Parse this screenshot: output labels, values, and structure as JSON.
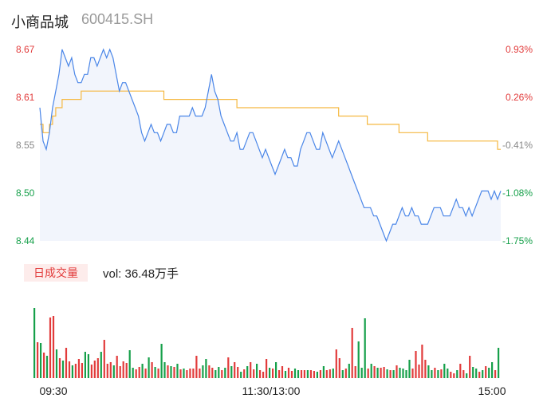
{
  "header": {
    "name": "小商品城",
    "code": "600415.SH"
  },
  "volume_panel": {
    "tab_label": "日成交量",
    "vol_text": "vol: 36.48万手"
  },
  "colors": {
    "price_line": "#4a86e8",
    "avg_line": "#f5b840",
    "up": "#e23b3b",
    "down": "#16a04a",
    "area_fill": "#f2f5fc"
  },
  "chart_data": [
    {
      "type": "line",
      "y_left_ticks": [
        "8.67",
        "8.61",
        "8.55",
        "8.50",
        "8.44"
      ],
      "y_right_ticks": [
        "0.93%",
        "0.26%",
        "-0.41%",
        "-1.08%",
        "-1.75%"
      ],
      "x_ticks": [
        "09:30",
        "11:30/13:00",
        "15:00"
      ],
      "ylim": [
        8.44,
        8.67
      ],
      "series": [
        {
          "values": [
            8.6,
            8.56,
            8.55,
            8.57,
            8.6,
            8.62,
            8.64,
            8.67,
            8.66,
            8.65,
            8.66,
            8.64,
            8.63,
            8.63,
            8.64,
            8.64,
            8.66,
            8.66,
            8.65,
            8.66,
            8.67,
            8.66,
            8.67,
            8.66,
            8.64,
            8.62,
            8.63,
            8.63,
            8.62,
            8.61,
            8.6,
            8.59,
            8.57,
            8.56,
            8.57,
            8.58,
            8.57,
            8.57,
            8.56,
            8.57,
            8.58,
            8.58,
            8.57,
            8.57,
            8.59,
            8.59,
            8.59,
            8.59,
            8.6,
            8.59,
            8.59,
            8.59,
            8.6,
            8.62,
            8.64,
            8.62,
            8.61,
            8.59,
            8.58,
            8.57,
            8.56,
            8.56,
            8.57,
            8.55,
            8.55,
            8.56,
            8.57,
            8.57,
            8.56,
            8.55,
            8.54,
            8.55,
            8.54,
            8.53,
            8.52,
            8.53,
            8.54,
            8.55,
            8.54,
            8.54,
            8.53,
            8.53,
            8.55,
            8.56,
            8.57,
            8.57,
            8.56,
            8.55,
            8.55,
            8.57,
            8.56,
            8.55,
            8.54,
            8.55,
            8.56,
            8.55,
            8.54,
            8.53,
            8.52,
            8.51,
            8.5,
            8.49,
            8.48,
            8.48,
            8.48,
            8.47,
            8.47,
            8.46,
            8.45,
            8.44,
            8.45,
            8.46,
            8.46,
            8.47,
            8.48,
            8.47,
            8.47,
            8.48,
            8.47,
            8.47,
            8.46,
            8.46,
            8.46,
            8.47,
            8.48,
            8.48,
            8.48,
            8.47,
            8.47,
            8.47,
            8.48,
            8.49,
            8.48,
            8.48,
            8.47,
            8.48,
            8.47,
            8.48,
            8.49,
            8.5,
            8.5,
            8.5,
            8.49,
            8.5,
            8.49,
            8.5
          ]
        },
        {
          "values": [
            8.58,
            8.57,
            8.57,
            8.58,
            8.59,
            8.6,
            8.6,
            8.61,
            8.61,
            8.61,
            8.61,
            8.61,
            8.61,
            8.62,
            8.62,
            8.62,
            8.62,
            8.62,
            8.62,
            8.62,
            8.62,
            8.62,
            8.62,
            8.62,
            8.62,
            8.62,
            8.62,
            8.62,
            8.62,
            8.62,
            8.62,
            8.62,
            8.62,
            8.62,
            8.62,
            8.62,
            8.62,
            8.62,
            8.62,
            8.61,
            8.61,
            8.61,
            8.61,
            8.61,
            8.61,
            8.61,
            8.61,
            8.61,
            8.61,
            8.61,
            8.61,
            8.61,
            8.61,
            8.61,
            8.61,
            8.61,
            8.61,
            8.61,
            8.61,
            8.61,
            8.61,
            8.61,
            8.6,
            8.6,
            8.6,
            8.6,
            8.6,
            8.6,
            8.6,
            8.6,
            8.6,
            8.6,
            8.6,
            8.6,
            8.6,
            8.6,
            8.6,
            8.6,
            8.6,
            8.6,
            8.6,
            8.6,
            8.6,
            8.6,
            8.6,
            8.6,
            8.6,
            8.6,
            8.6,
            8.6,
            8.6,
            8.6,
            8.6,
            8.6,
            8.59,
            8.59,
            8.59,
            8.59,
            8.59,
            8.59,
            8.59,
            8.59,
            8.59,
            8.58,
            8.58,
            8.58,
            8.58,
            8.58,
            8.58,
            8.58,
            8.58,
            8.58,
            8.58,
            8.57,
            8.57,
            8.57,
            8.57,
            8.57,
            8.57,
            8.57,
            8.57,
            8.57,
            8.56,
            8.56,
            8.56,
            8.56,
            8.56,
            8.56,
            8.56,
            8.56,
            8.56,
            8.56,
            8.56,
            8.56,
            8.56,
            8.56,
            8.56,
            8.56,
            8.56,
            8.56,
            8.56,
            8.56,
            8.56,
            8.56,
            8.55,
            8.55
          ]
        }
      ]
    },
    {
      "type": "bar",
      "values": [
        {
          "v": 88,
          "up": false
        },
        {
          "v": 45,
          "up": true
        },
        {
          "v": 44,
          "up": false
        },
        {
          "v": 32,
          "up": true
        },
        {
          "v": 28,
          "up": false
        },
        {
          "v": 76,
          "up": true
        },
        {
          "v": 78,
          "up": true
        },
        {
          "v": 36,
          "up": false
        },
        {
          "v": 25,
          "up": true
        },
        {
          "v": 22,
          "up": false
        },
        {
          "v": 38,
          "up": true
        },
        {
          "v": 21,
          "up": true
        },
        {
          "v": 16,
          "up": false
        },
        {
          "v": 18,
          "up": true
        },
        {
          "v": 24,
          "up": true
        },
        {
          "v": 19,
          "up": true
        },
        {
          "v": 33,
          "up": false
        },
        {
          "v": 30,
          "up": false
        },
        {
          "v": 17,
          "up": true
        },
        {
          "v": 22,
          "up": true
        },
        {
          "v": 25,
          "up": true
        },
        {
          "v": 33,
          "up": false
        },
        {
          "v": 48,
          "up": true
        },
        {
          "v": 18,
          "up": true
        },
        {
          "v": 20,
          "up": true
        },
        {
          "v": 16,
          "up": false
        },
        {
          "v": 28,
          "up": true
        },
        {
          "v": 15,
          "up": true
        },
        {
          "v": 21,
          "up": true
        },
        {
          "v": 19,
          "up": true
        },
        {
          "v": 35,
          "up": false
        },
        {
          "v": 13,
          "up": false
        },
        {
          "v": 11,
          "up": true
        },
        {
          "v": 14,
          "up": true
        },
        {
          "v": 18,
          "up": false
        },
        {
          "v": 12,
          "up": true
        },
        {
          "v": 26,
          "up": false
        },
        {
          "v": 20,
          "up": true
        },
        {
          "v": 14,
          "up": false
        },
        {
          "v": 12,
          "up": true
        },
        {
          "v": 43,
          "up": false
        },
        {
          "v": 20,
          "up": false
        },
        {
          "v": 16,
          "up": true
        },
        {
          "v": 15,
          "up": false
        },
        {
          "v": 14,
          "up": true
        },
        {
          "v": 18,
          "up": false
        },
        {
          "v": 11,
          "up": true
        },
        {
          "v": 12,
          "up": false
        },
        {
          "v": 10,
          "up": true
        },
        {
          "v": 12,
          "up": true
        },
        {
          "v": 12,
          "up": true
        },
        {
          "v": 28,
          "up": true
        },
        {
          "v": 12,
          "up": true
        },
        {
          "v": 16,
          "up": false
        },
        {
          "v": 24,
          "up": false
        },
        {
          "v": 16,
          "up": true
        },
        {
          "v": 13,
          "up": true
        },
        {
          "v": 10,
          "up": false
        },
        {
          "v": 14,
          "up": false
        },
        {
          "v": 10,
          "up": true
        },
        {
          "v": 13,
          "up": false
        },
        {
          "v": 26,
          "up": true
        },
        {
          "v": 15,
          "up": false
        },
        {
          "v": 20,
          "up": true
        },
        {
          "v": 14,
          "up": true
        },
        {
          "v": 8,
          "up": false
        },
        {
          "v": 11,
          "up": true
        },
        {
          "v": 15,
          "up": false
        },
        {
          "v": 20,
          "up": true
        },
        {
          "v": 11,
          "up": true
        },
        {
          "v": 18,
          "up": false
        },
        {
          "v": 10,
          "up": true
        },
        {
          "v": 8,
          "up": true
        },
        {
          "v": 24,
          "up": true
        },
        {
          "v": 13,
          "up": false
        },
        {
          "v": 12,
          "up": true
        },
        {
          "v": 20,
          "up": false
        },
        {
          "v": 10,
          "up": true
        },
        {
          "v": 15,
          "up": true
        },
        {
          "v": 9,
          "up": false
        },
        {
          "v": 13,
          "up": true
        },
        {
          "v": 9,
          "up": true
        },
        {
          "v": 12,
          "up": false
        },
        {
          "v": 10,
          "up": false
        },
        {
          "v": 10,
          "up": true
        },
        {
          "v": 10,
          "up": true
        },
        {
          "v": 10,
          "up": false
        },
        {
          "v": 10,
          "up": true
        },
        {
          "v": 9,
          "up": true
        },
        {
          "v": 8,
          "up": false
        },
        {
          "v": 10,
          "up": true
        },
        {
          "v": 15,
          "up": false
        },
        {
          "v": 10,
          "up": true
        },
        {
          "v": 11,
          "up": true
        },
        {
          "v": 12,
          "up": false
        },
        {
          "v": 36,
          "up": true
        },
        {
          "v": 25,
          "up": true
        },
        {
          "v": 10,
          "up": false
        },
        {
          "v": 12,
          "up": true
        },
        {
          "v": 18,
          "up": false
        },
        {
          "v": 63,
          "up": true
        },
        {
          "v": 15,
          "up": true
        },
        {
          "v": 46,
          "up": false
        },
        {
          "v": 13,
          "up": false
        },
        {
          "v": 75,
          "up": false
        },
        {
          "v": 12,
          "up": true
        },
        {
          "v": 18,
          "up": false
        },
        {
          "v": 15,
          "up": true
        },
        {
          "v": 13,
          "up": false
        },
        {
          "v": 13,
          "up": true
        },
        {
          "v": 14,
          "up": true
        },
        {
          "v": 11,
          "up": false
        },
        {
          "v": 10,
          "up": true
        },
        {
          "v": 10,
          "up": false
        },
        {
          "v": 16,
          "up": true
        },
        {
          "v": 13,
          "up": false
        },
        {
          "v": 12,
          "up": false
        },
        {
          "v": 10,
          "up": false
        },
        {
          "v": 23,
          "up": false
        },
        {
          "v": 12,
          "up": true
        },
        {
          "v": 34,
          "up": true
        },
        {
          "v": 17,
          "up": true
        },
        {
          "v": 42,
          "up": true
        },
        {
          "v": 23,
          "up": true
        },
        {
          "v": 16,
          "up": false
        },
        {
          "v": 10,
          "up": false
        },
        {
          "v": 13,
          "up": true
        },
        {
          "v": 10,
          "up": false
        },
        {
          "v": 11,
          "up": true
        },
        {
          "v": 18,
          "up": false
        },
        {
          "v": 12,
          "up": false
        },
        {
          "v": 8,
          "up": true
        },
        {
          "v": 6,
          "up": true
        },
        {
          "v": 10,
          "up": false
        },
        {
          "v": 18,
          "up": true
        },
        {
          "v": 10,
          "up": true
        },
        {
          "v": 6,
          "up": false
        },
        {
          "v": 28,
          "up": true
        },
        {
          "v": 14,
          "up": false
        },
        {
          "v": 12,
          "up": false
        },
        {
          "v": 8,
          "up": true
        },
        {
          "v": 10,
          "up": false
        },
        {
          "v": 15,
          "up": true
        },
        {
          "v": 13,
          "up": false
        },
        {
          "v": 20,
          "up": false
        },
        {
          "v": 10,
          "up": true
        },
        {
          "v": 38,
          "up": false
        }
      ]
    }
  ]
}
